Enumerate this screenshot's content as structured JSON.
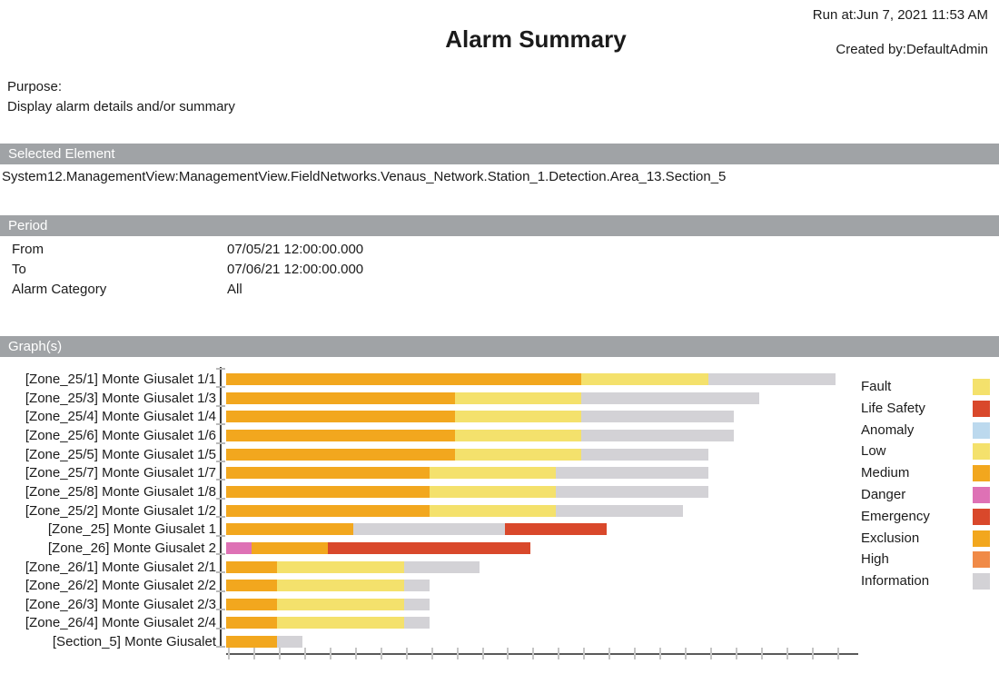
{
  "header": {
    "run_at": "Run at:Jun 7, 2021 11:53 AM",
    "title": "Alarm Summary",
    "created_by": "Created by:DefaultAdmin"
  },
  "purpose": {
    "label": "Purpose:",
    "text": "Display alarm details and/or summary"
  },
  "selected_element": {
    "header": "Selected Element",
    "path": "System12.ManagementView:ManagementView.FieldNetworks.Venaus_Network.Station_1.Detection.Area_13.Section_5"
  },
  "period": {
    "header": "Period",
    "rows": [
      {
        "label": "From",
        "value": "07/05/21 12:00:00.000"
      },
      {
        "label": "To",
        "value": "07/06/21 12:00:00.000"
      },
      {
        "label": "Alarm Category",
        "value": "All"
      }
    ]
  },
  "graphs": {
    "header": "Graph(s)"
  },
  "chart_data": {
    "type": "bar",
    "orientation": "horizontal",
    "stacked": true,
    "value_unit": "alarm count (1 unit per x-axis tick)",
    "x_axis": {
      "tick_count": 25,
      "tick_step": 1,
      "range": [
        0,
        24
      ],
      "tick_labels_visible": false
    },
    "grid": false,
    "legend_position": "right",
    "colors": {
      "orange": "#F2A71E",
      "yellow": "#F4E16C",
      "gray": "#D3D2D6",
      "red": "#D9482B",
      "pink": "#DE71B5",
      "light_blue": "#BCD9EE",
      "high_orange": "#F08A47"
    },
    "bars": [
      {
        "label": "[Zone_25/1] Monte Giusalet 1/1",
        "segments": [
          {
            "category": "Medium/Exclusion",
            "color": "#F2A71E",
            "value": 14
          },
          {
            "category": "Fault/Low",
            "color": "#F4E16C",
            "value": 5
          },
          {
            "category": "Information",
            "color": "#D3D2D6",
            "value": 5
          }
        ]
      },
      {
        "label": "[Zone_25/3] Monte Giusalet 1/3",
        "segments": [
          {
            "category": "Medium/Exclusion",
            "color": "#F2A71E",
            "value": 9
          },
          {
            "category": "Fault/Low",
            "color": "#F4E16C",
            "value": 5
          },
          {
            "category": "Information",
            "color": "#D3D2D6",
            "value": 7
          }
        ]
      },
      {
        "label": "[Zone_25/4] Monte Giusalet 1/4",
        "segments": [
          {
            "category": "Medium/Exclusion",
            "color": "#F2A71E",
            "value": 9
          },
          {
            "category": "Fault/Low",
            "color": "#F4E16C",
            "value": 5
          },
          {
            "category": "Information",
            "color": "#D3D2D6",
            "value": 6
          }
        ]
      },
      {
        "label": "[Zone_25/6] Monte Giusalet 1/6",
        "segments": [
          {
            "category": "Medium/Exclusion",
            "color": "#F2A71E",
            "value": 9
          },
          {
            "category": "Fault/Low",
            "color": "#F4E16C",
            "value": 5
          },
          {
            "category": "Information",
            "color": "#D3D2D6",
            "value": 6
          }
        ]
      },
      {
        "label": "[Zone_25/5] Monte Giusalet 1/5",
        "segments": [
          {
            "category": "Medium/Exclusion",
            "color": "#F2A71E",
            "value": 9
          },
          {
            "category": "Fault/Low",
            "color": "#F4E16C",
            "value": 5
          },
          {
            "category": "Information",
            "color": "#D3D2D6",
            "value": 5
          }
        ]
      },
      {
        "label": "[Zone_25/7] Monte Giusalet 1/7",
        "segments": [
          {
            "category": "Medium/Exclusion",
            "color": "#F2A71E",
            "value": 8
          },
          {
            "category": "Fault/Low",
            "color": "#F4E16C",
            "value": 5
          },
          {
            "category": "Information",
            "color": "#D3D2D6",
            "value": 6
          }
        ]
      },
      {
        "label": "[Zone_25/8] Monte Giusalet 1/8",
        "segments": [
          {
            "category": "Medium/Exclusion",
            "color": "#F2A71E",
            "value": 8
          },
          {
            "category": "Fault/Low",
            "color": "#F4E16C",
            "value": 5
          },
          {
            "category": "Information",
            "color": "#D3D2D6",
            "value": 6
          }
        ]
      },
      {
        "label": "[Zone_25/2] Monte Giusalet 1/2",
        "segments": [
          {
            "category": "Medium/Exclusion",
            "color": "#F2A71E",
            "value": 8
          },
          {
            "category": "Fault/Low",
            "color": "#F4E16C",
            "value": 5
          },
          {
            "category": "Information",
            "color": "#D3D2D6",
            "value": 5
          }
        ]
      },
      {
        "label": "[Zone_25] Monte Giusalet 1",
        "segments": [
          {
            "category": "Medium/Exclusion",
            "color": "#F2A71E",
            "value": 5
          },
          {
            "category": "Information",
            "color": "#D3D2D6",
            "value": 6
          },
          {
            "category": "Life Safety/Emergency",
            "color": "#D9482B",
            "value": 4
          }
        ]
      },
      {
        "label": "[Zone_26] Monte Giusalet 2",
        "segments": [
          {
            "category": "Danger",
            "color": "#DE71B5",
            "value": 1
          },
          {
            "category": "Medium/Exclusion",
            "color": "#F2A71E",
            "value": 3
          },
          {
            "category": "Life Safety/Emergency",
            "color": "#D9482B",
            "value": 8
          }
        ]
      },
      {
        "label": "[Zone_26/1] Monte Giusalet 2/1",
        "segments": [
          {
            "category": "Medium/Exclusion",
            "color": "#F2A71E",
            "value": 2
          },
          {
            "category": "Fault/Low",
            "color": "#F4E16C",
            "value": 5
          },
          {
            "category": "Information",
            "color": "#D3D2D6",
            "value": 3
          }
        ]
      },
      {
        "label": "[Zone_26/2] Monte Giusalet 2/2",
        "segments": [
          {
            "category": "Medium/Exclusion",
            "color": "#F2A71E",
            "value": 2
          },
          {
            "category": "Fault/Low",
            "color": "#F4E16C",
            "value": 5
          },
          {
            "category": "Information",
            "color": "#D3D2D6",
            "value": 1
          }
        ]
      },
      {
        "label": "[Zone_26/3] Monte Giusalet 2/3",
        "segments": [
          {
            "category": "Medium/Exclusion",
            "color": "#F2A71E",
            "value": 2
          },
          {
            "category": "Fault/Low",
            "color": "#F4E16C",
            "value": 5
          },
          {
            "category": "Information",
            "color": "#D3D2D6",
            "value": 1
          }
        ]
      },
      {
        "label": "[Zone_26/4] Monte Giusalet 2/4",
        "segments": [
          {
            "category": "Medium/Exclusion",
            "color": "#F2A71E",
            "value": 2
          },
          {
            "category": "Fault/Low",
            "color": "#F4E16C",
            "value": 5
          },
          {
            "category": "Information",
            "color": "#D3D2D6",
            "value": 1
          }
        ]
      },
      {
        "label": "[Section_5] Monte Giusalet",
        "segments": [
          {
            "category": "Medium/Exclusion",
            "color": "#F2A71E",
            "value": 2
          },
          {
            "category": "Information",
            "color": "#D3D2D6",
            "value": 1
          }
        ]
      }
    ],
    "legend": [
      {
        "label": "Fault",
        "color": "#F4E16C"
      },
      {
        "label": "Life Safety",
        "color": "#D9482B"
      },
      {
        "label": "Anomaly",
        "color": "#BCD9EE"
      },
      {
        "label": "Low",
        "color": "#F4E16C"
      },
      {
        "label": "Medium",
        "color": "#F2A71E"
      },
      {
        "label": "Danger",
        "color": "#DE71B5"
      },
      {
        "label": "Emergency",
        "color": "#D9482B"
      },
      {
        "label": "Exclusion",
        "color": "#F2A71E"
      },
      {
        "label": "High",
        "color": "#F08A47"
      },
      {
        "label": "Information",
        "color": "#D3D2D6"
      }
    ]
  }
}
